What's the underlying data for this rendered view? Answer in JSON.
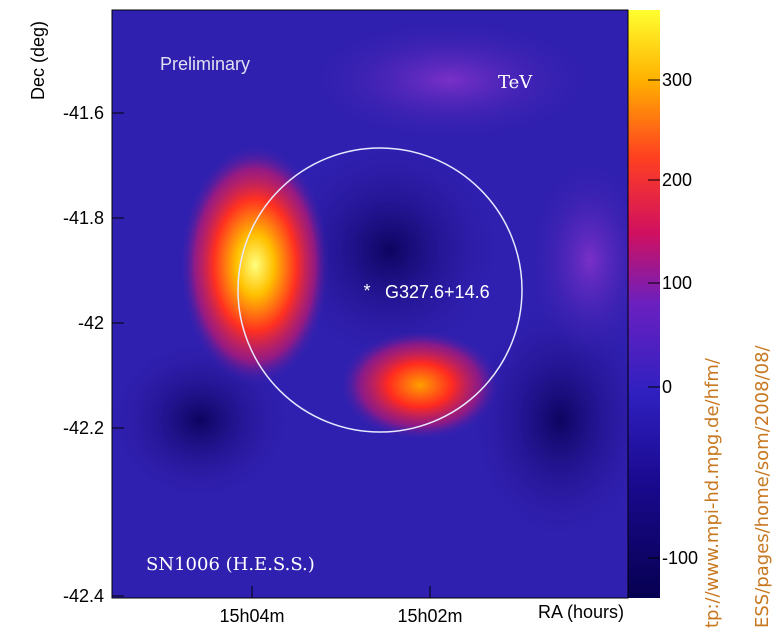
{
  "map": {
    "annotation": "Preliminary",
    "energy_label": "TeV",
    "object_label": "G327.6+14.6",
    "caption": "SN1006 (H.E.S.S.)",
    "y_axis_label": "Dec (deg)",
    "x_axis_label": "RA (hours)",
    "yticks": [
      -41.6,
      -41.8,
      -42,
      -42.2,
      -42.4
    ],
    "xticks": [
      "15h04m",
      "15h02m"
    ],
    "colorbar_ticks": [
      300,
      200,
      100,
      0,
      -100
    ]
  },
  "watermark": {
    "lines": [
      "tp://www.mpi-hd.mpg.de/hfm/",
      "ESS/pages/home/som/2008/08/"
    ]
  }
}
